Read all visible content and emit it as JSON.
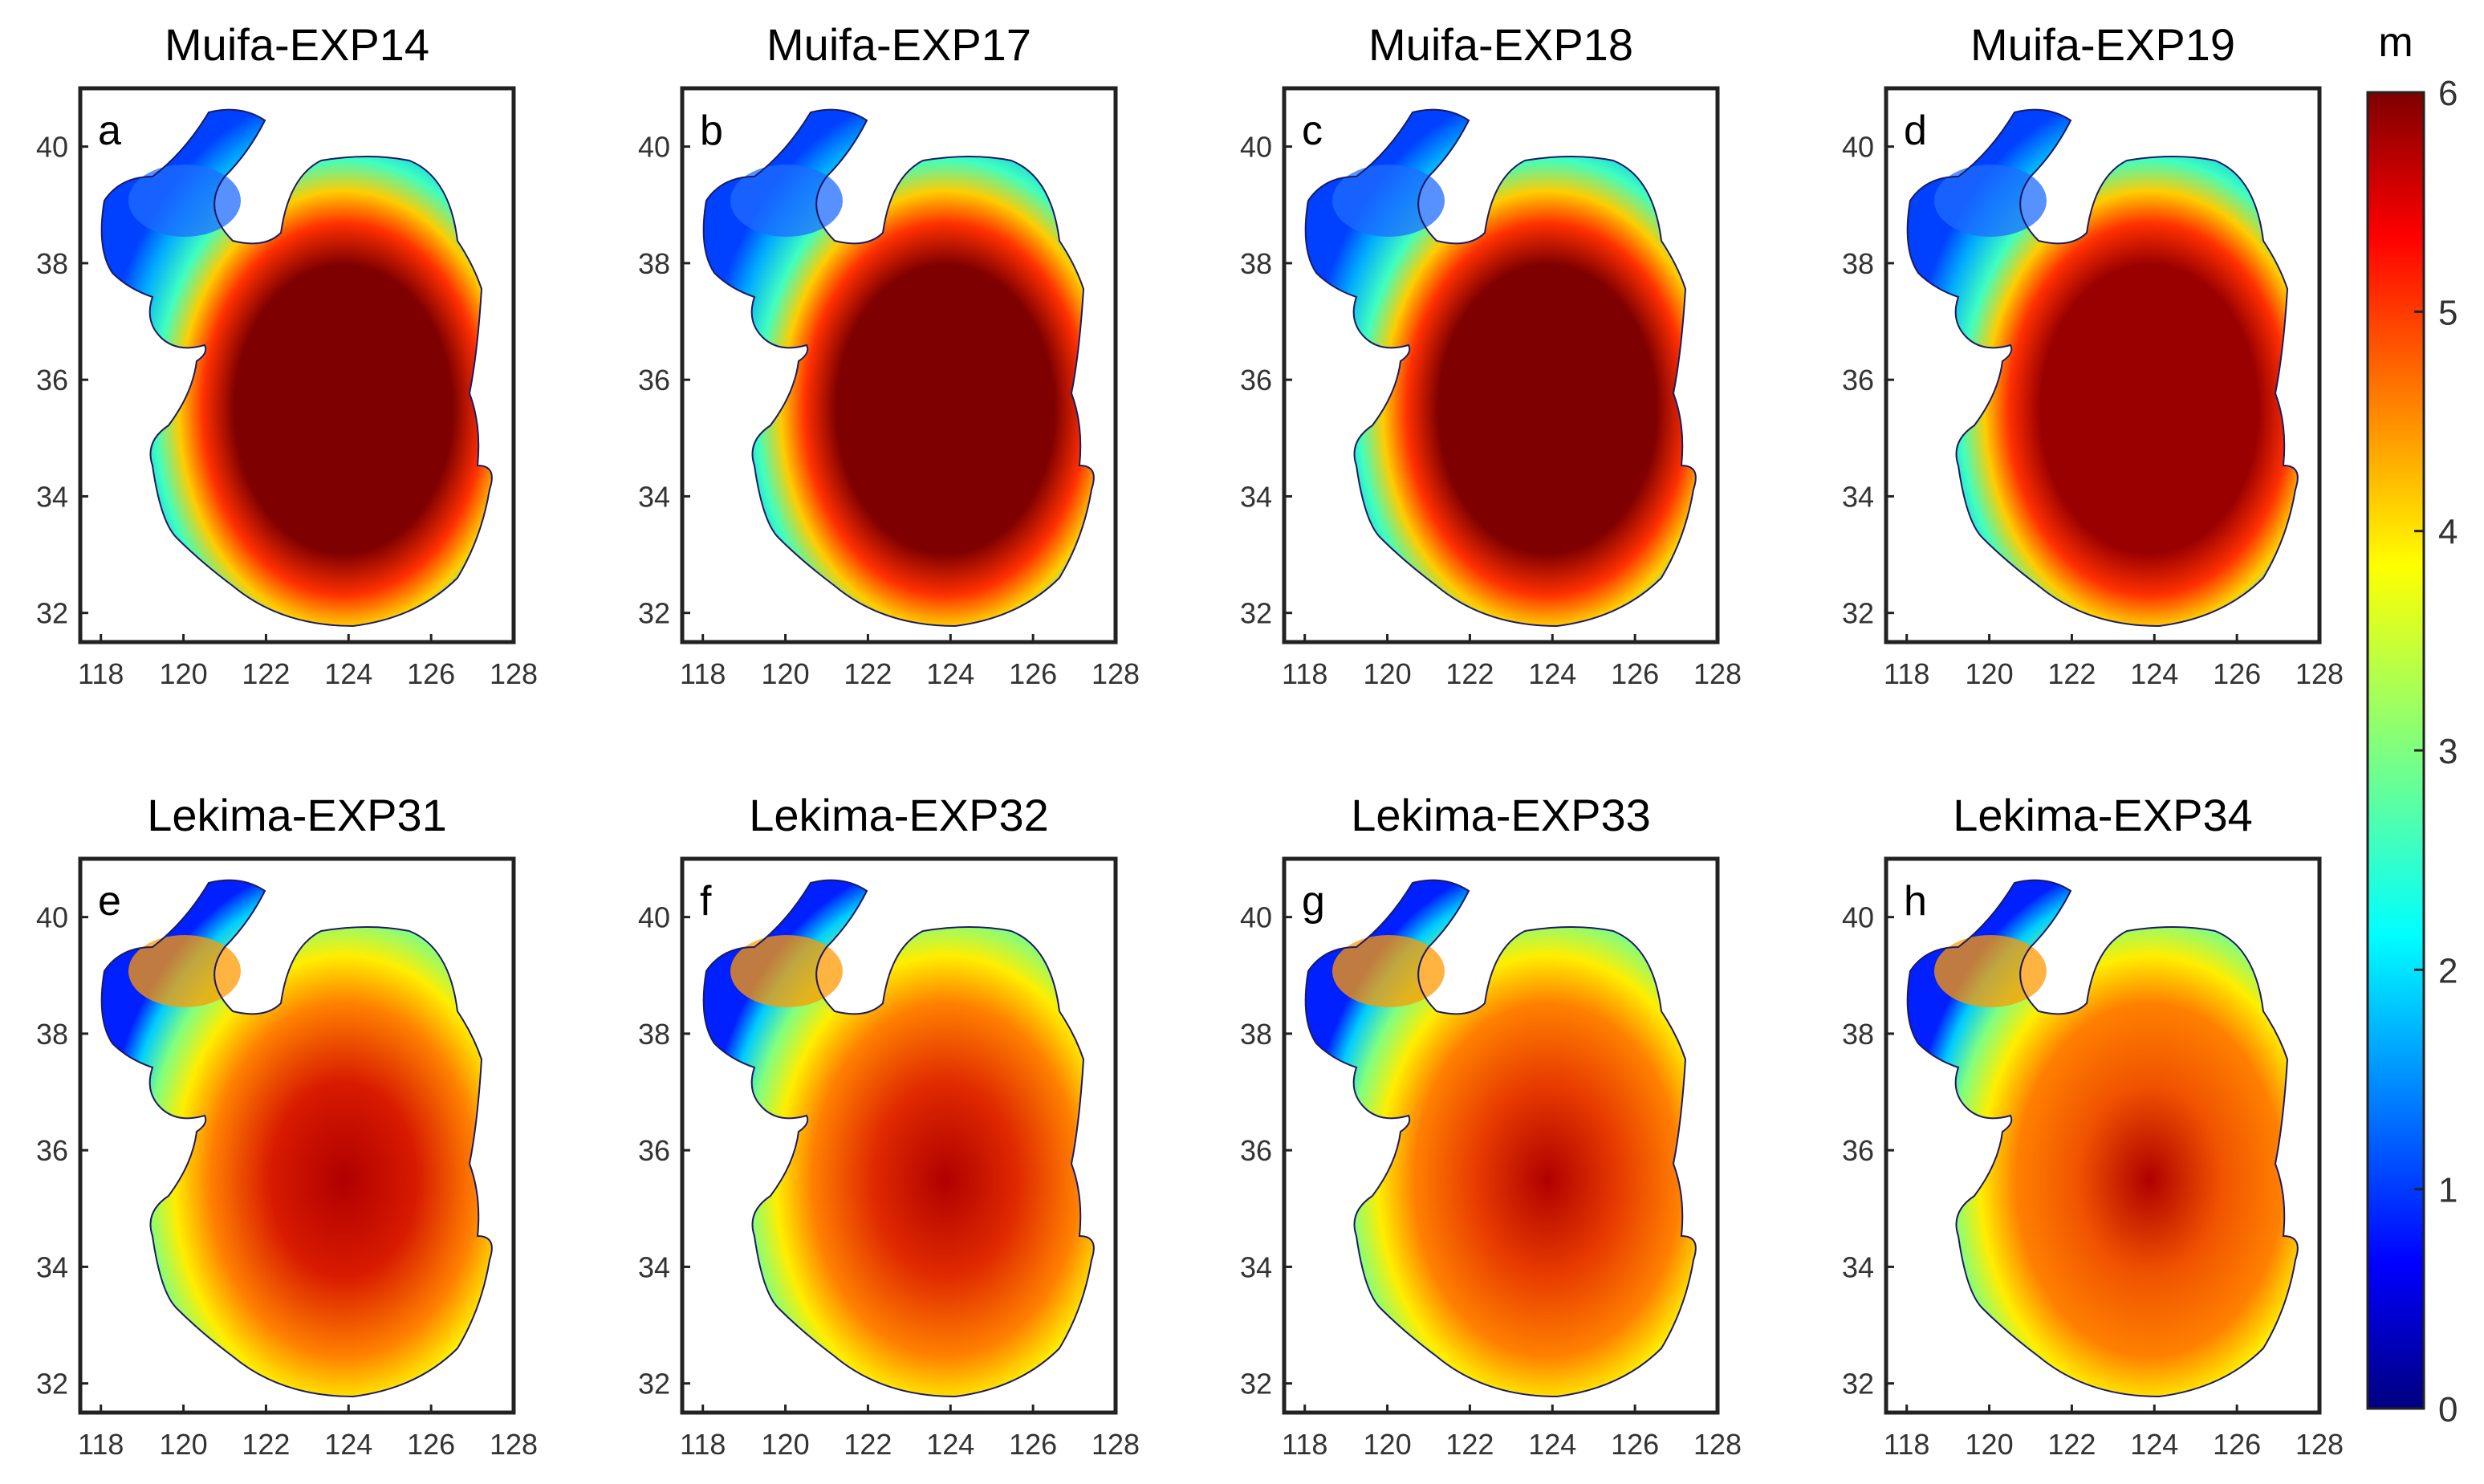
{
  "figure": {
    "colorbar": {
      "unit": "m",
      "min": 0,
      "max": 6,
      "ticks": [
        "0",
        "1",
        "2",
        "3",
        "4",
        "5",
        "6"
      ],
      "colormap": "jet"
    },
    "axes": {
      "lon_range": [
        117.5,
        128
      ],
      "lat_range": [
        31.5,
        41
      ],
      "x_ticks": [
        "118",
        "120",
        "122",
        "124",
        "126",
        "128"
      ],
      "y_ticks": [
        "32",
        "34",
        "36",
        "38",
        "40"
      ]
    },
    "panels": [
      {
        "label": "a",
        "title": "Muifa-EXP14",
        "scenario": "muifa",
        "core_color": "#7f0000"
      },
      {
        "label": "b",
        "title": "Muifa-EXP17",
        "scenario": "muifa",
        "core_color": "#7f0000"
      },
      {
        "label": "c",
        "title": "Muifa-EXP18",
        "scenario": "muifa",
        "core_color": "#7f0000"
      },
      {
        "label": "d",
        "title": "Muifa-EXP19",
        "scenario": "muifa",
        "core_color": "#9a0000"
      },
      {
        "label": "e",
        "title": "Lekima-EXP31",
        "scenario": "lekima",
        "core_color": "#d81a00"
      },
      {
        "label": "f",
        "title": "Lekima-EXP32",
        "scenario": "lekima",
        "core_color": "#e02a00"
      },
      {
        "label": "g",
        "title": "Lekima-EXP33",
        "scenario": "lekima",
        "core_color": "#e83c00"
      },
      {
        "label": "h",
        "title": "Lekima-EXP34",
        "scenario": "lekima",
        "core_color": "#f05400"
      }
    ]
  }
}
